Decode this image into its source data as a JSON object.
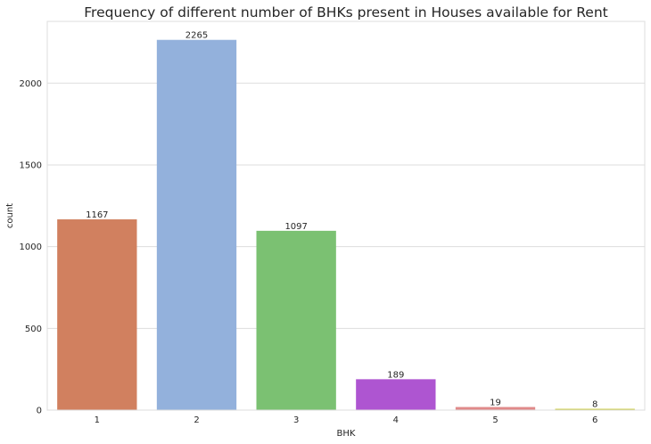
{
  "chart_data": {
    "type": "bar",
    "title": "Frequency of different number of BHKs present in Houses available for Rent",
    "xlabel": "BHK",
    "ylabel": "count",
    "categories": [
      "1",
      "2",
      "3",
      "4",
      "5",
      "6"
    ],
    "values": [
      1167,
      2265,
      1097,
      189,
      19,
      8
    ],
    "data_labels": [
      "1167",
      "2265",
      "1097",
      "189",
      "19",
      "8"
    ],
    "colors": [
      "#d1805f",
      "#93b1dc",
      "#7bc172",
      "#ae55d1",
      "#e08a8a",
      "#c9cc3e"
    ],
    "ylim": [
      0,
      2378
    ],
    "yticks": [
      0,
      500,
      1000,
      1500,
      2000
    ],
    "ytick_labels": [
      "0",
      "500",
      "1000",
      "1500",
      "2000"
    ],
    "grid": true,
    "legend": "none"
  }
}
